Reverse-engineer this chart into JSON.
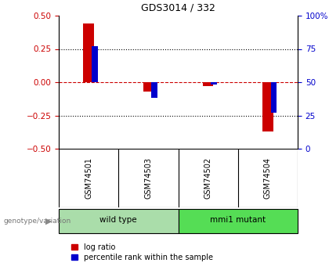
{
  "title": "GDS3014 / 332",
  "samples": [
    "GSM74501",
    "GSM74503",
    "GSM74502",
    "GSM74504"
  ],
  "log_ratios": [
    0.44,
    -0.07,
    -0.03,
    -0.37
  ],
  "percentile_ranks_scaled": [
    0.27,
    -0.12,
    -0.02,
    -0.23
  ],
  "groups": [
    {
      "label": "wild type",
      "indices": [
        0,
        1
      ],
      "color": "#aaddaa"
    },
    {
      "label": "mmi1 mutant",
      "indices": [
        2,
        3
      ],
      "color": "#55dd55"
    }
  ],
  "group_label": "genotype/variation",
  "ylim": [
    -0.5,
    0.5
  ],
  "yticks_left": [
    -0.5,
    -0.25,
    0,
    0.25,
    0.5
  ],
  "yticks_right_pct": [
    0,
    25,
    50,
    75,
    100
  ],
  "log_color": "#cc0000",
  "pct_color": "#0000cc",
  "zero_line_color": "#cc0000",
  "dotted_color": "#000000",
  "legend_labels": [
    "log ratio",
    "percentile rank within the sample"
  ],
  "background_color": "#ffffff",
  "plot_bg": "#ffffff",
  "sample_cell_bg": "#cccccc"
}
